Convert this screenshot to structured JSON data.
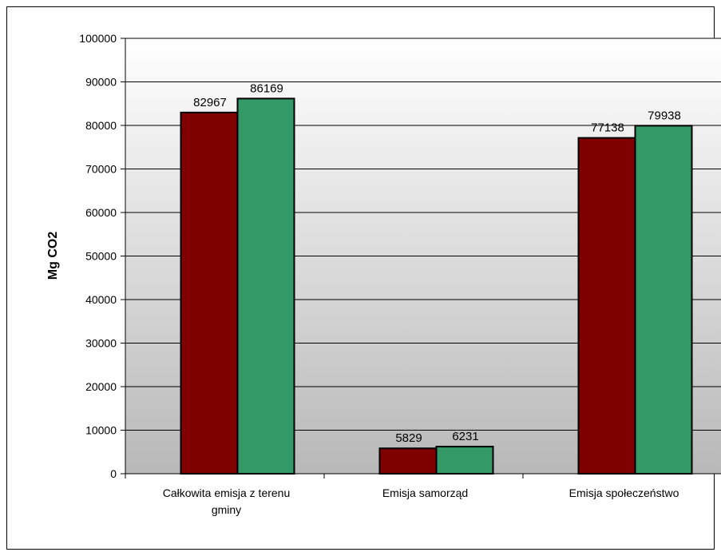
{
  "chart_data": {
    "type": "bar",
    "title": "",
    "xlabel": "",
    "ylabel": "Mg CO2",
    "ylim": [
      0,
      100000
    ],
    "yticks": [
      0,
      10000,
      20000,
      30000,
      40000,
      50000,
      60000,
      70000,
      80000,
      90000,
      100000
    ],
    "categories": [
      [
        "Całkowita emisja z terenu",
        "gminy"
      ],
      [
        "Emisja samorząd"
      ],
      [
        "Emisja społeczeństwo"
      ]
    ],
    "series": [
      {
        "values": [
          82967,
          5829,
          77138
        ],
        "color": "#800000"
      },
      {
        "values": [
          86169,
          6231,
          79938
        ],
        "color": "#339966"
      }
    ],
    "grid": true,
    "legend": "none",
    "plot_background": "gradient white to gray"
  }
}
